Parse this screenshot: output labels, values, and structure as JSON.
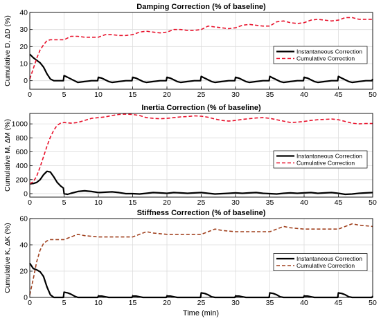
{
  "colors": {
    "instantaneous": "#000000",
    "cumulative_red": "#e8102a",
    "cumulative_brown": "#a0401e",
    "grid": "#dcdcdc",
    "axis": "#000000"
  },
  "xlabel": "Time (min)",
  "chart_data": [
    {
      "type": "line",
      "title": "Damping Correction (% of baseline)",
      "ylabel": "Cumulative D,  ΔD (%)",
      "xlim": [
        0,
        50
      ],
      "ylim": [
        -5,
        40
      ],
      "xticks": [
        0,
        5,
        10,
        15,
        20,
        25,
        30,
        35,
        40,
        45,
        50
      ],
      "yticks": [
        0,
        10,
        20,
        30,
        40
      ],
      "grid": true,
      "legend": "right",
      "series": [
        {
          "name": "Instantaneous Correction",
          "style": "solid",
          "color": "#000000",
          "x": [
            0,
            0.5,
            1,
            1.5,
            2,
            2.5,
            3,
            3.5,
            4,
            4.9,
            5,
            5.5,
            6,
            6.5,
            7,
            8,
            9,
            9.9,
            10,
            10.5,
            11,
            11.5,
            12,
            13,
            14,
            14.9,
            15,
            15.5,
            16,
            16.5,
            17,
            18,
            19,
            19.9,
            20,
            20.5,
            21,
            21.5,
            22,
            23,
            24,
            24.9,
            25,
            25.5,
            26,
            26.5,
            27,
            28,
            29,
            29.9,
            30,
            30.5,
            31,
            31.5,
            32,
            33,
            34,
            34.9,
            35,
            35.5,
            36,
            36.5,
            37,
            38,
            39,
            39.9,
            40,
            40.5,
            41,
            41.5,
            42,
            43,
            44,
            44.9,
            45,
            45.5,
            46,
            46.5,
            47,
            48,
            49,
            49.9,
            50
          ],
          "y": [
            15.5,
            13.5,
            12,
            10.5,
            8,
            4,
            1,
            0,
            0,
            0,
            3,
            2,
            1,
            0,
            -1,
            -0.5,
            0,
            0,
            2,
            1.5,
            0.5,
            -0.5,
            -1,
            -0.5,
            0,
            0,
            2,
            1.5,
            0.5,
            -0.5,
            -1,
            -0.5,
            0,
            0,
            2,
            1.5,
            0.5,
            -0.5,
            -1,
            -0.5,
            0,
            0,
            2.5,
            1.5,
            0.5,
            -0.5,
            -1,
            -0.5,
            0,
            0,
            2,
            1.5,
            0.5,
            -0.5,
            -1,
            -0.5,
            0,
            0,
            2.5,
            1.5,
            0.5,
            -0.5,
            -1,
            -0.5,
            0,
            0,
            2,
            1.5,
            0.5,
            -0.5,
            -1,
            -0.5,
            0,
            0,
            2.5,
            1.5,
            0.5,
            -0.5,
            -1,
            -0.5,
            0,
            0,
            1
          ]
        },
        {
          "name": "Cumulative Correction",
          "style": "dashed",
          "color": "#e8102a",
          "x": [
            0,
            0.5,
            1,
            1.5,
            2,
            2.5,
            3,
            4,
            5,
            6,
            7,
            8,
            9,
            10,
            11,
            12,
            13,
            14,
            15,
            16,
            17,
            18,
            19,
            20,
            21,
            22,
            23,
            24,
            25,
            26,
            27,
            28,
            29,
            30,
            31,
            32,
            33,
            34,
            35,
            36,
            37,
            38,
            39,
            40,
            41,
            42,
            43,
            44,
            45,
            46,
            47,
            48,
            49,
            50
          ],
          "y": [
            1,
            7,
            13,
            18,
            21,
            23.5,
            24,
            24,
            24,
            26,
            26,
            25.5,
            25.5,
            25.5,
            27,
            27,
            26.5,
            26.5,
            27,
            28.5,
            29,
            28.5,
            28,
            28.5,
            30,
            30,
            29.5,
            29.5,
            30,
            32,
            31.5,
            31,
            30.5,
            31,
            32.5,
            33,
            32.5,
            32,
            32,
            34.5,
            35,
            34,
            33.5,
            34,
            35.5,
            36,
            35.5,
            35,
            35.5,
            37,
            37,
            36,
            36,
            36
          ]
        }
      ]
    },
    {
      "type": "line",
      "title": "Inertia Correction (% of baseline)",
      "ylabel": "Cumulative M,  ΔM (%)",
      "xlim": [
        0,
        50
      ],
      "ylim": [
        -50,
        1150
      ],
      "xticks": [
        0,
        5,
        10,
        15,
        20,
        25,
        30,
        35,
        40,
        45,
        50
      ],
      "yticks": [
        0,
        200,
        400,
        600,
        800,
        1000
      ],
      "grid": true,
      "legend": "right",
      "series": [
        {
          "name": "Instantaneous Correction",
          "style": "solid",
          "color": "#000000",
          "x": [
            0,
            0.5,
            1,
            1.5,
            2,
            2.5,
            3,
            3.5,
            4,
            4.5,
            4.9,
            5,
            5.5,
            6,
            7,
            8,
            9,
            10,
            11,
            12,
            13,
            14,
            15,
            16,
            17,
            18,
            19,
            20,
            21,
            22,
            23,
            24,
            25,
            26,
            27,
            28,
            29,
            30,
            31,
            32,
            33,
            34,
            35,
            36,
            37,
            38,
            39,
            40,
            41,
            42,
            43,
            44,
            45,
            46,
            47,
            48,
            49,
            50
          ],
          "y": [
            140,
            145,
            160,
            200,
            270,
            320,
            310,
            240,
            160,
            110,
            80,
            0,
            -10,
            5,
            30,
            40,
            30,
            15,
            20,
            25,
            15,
            0,
            0,
            -5,
            5,
            15,
            10,
            5,
            15,
            10,
            5,
            10,
            15,
            5,
            -5,
            0,
            5,
            10,
            5,
            10,
            15,
            5,
            0,
            -5,
            5,
            10,
            5,
            10,
            15,
            5,
            10,
            15,
            5,
            -10,
            -5,
            5,
            10,
            15
          ]
        },
        {
          "name": "Cumulative Correction",
          "style": "dashed",
          "color": "#e8102a",
          "x": [
            0,
            0.5,
            1,
            1.5,
            2,
            2.5,
            3,
            3.5,
            4,
            4.5,
            5,
            6,
            7,
            8,
            9,
            10,
            11,
            12,
            13,
            14,
            15,
            16,
            17,
            18,
            19,
            20,
            21,
            22,
            23,
            24,
            25,
            26,
            27,
            28,
            29,
            30,
            31,
            32,
            33,
            34,
            35,
            36,
            37,
            38,
            39,
            40,
            41,
            42,
            43,
            44,
            45,
            46,
            47,
            48,
            49,
            50
          ],
          "y": [
            140,
            170,
            250,
            380,
            530,
            680,
            810,
            910,
            980,
            1010,
            1020,
            1010,
            1020,
            1050,
            1080,
            1090,
            1100,
            1120,
            1135,
            1140,
            1135,
            1120,
            1090,
            1080,
            1075,
            1080,
            1090,
            1100,
            1105,
            1115,
            1110,
            1095,
            1070,
            1050,
            1040,
            1050,
            1065,
            1075,
            1085,
            1090,
            1080,
            1060,
            1040,
            1020,
            1025,
            1035,
            1050,
            1060,
            1065,
            1070,
            1060,
            1035,
            1010,
            1000,
            1005,
            1005
          ]
        }
      ]
    },
    {
      "type": "line",
      "title": "Stiffness Correction (% of baseline)",
      "ylabel": "Cumulative K,  ΔK (%)",
      "xlim": [
        0,
        50
      ],
      "ylim": [
        0,
        60
      ],
      "xticks": [
        0,
        5,
        10,
        15,
        20,
        25,
        30,
        35,
        40,
        45,
        50
      ],
      "yticks": [
        0,
        20,
        40,
        60
      ],
      "grid": true,
      "legend": "right",
      "series": [
        {
          "name": "Instantaneous Correction",
          "style": "solid",
          "color": "#000000",
          "x": [
            0,
            0.5,
            1,
            1.5,
            2,
            2.5,
            3,
            3.5,
            4,
            4.9,
            5,
            5.5,
            6,
            6.5,
            7,
            8,
            9,
            9.9,
            10,
            10.5,
            11,
            11.5,
            12,
            13,
            14,
            14.9,
            15,
            15.5,
            16,
            16.5,
            17,
            18,
            19,
            19.9,
            20,
            20.5,
            21,
            21.5,
            22,
            23,
            24,
            24.9,
            25,
            25.5,
            26,
            26.5,
            27,
            28,
            29,
            29.9,
            30,
            30.5,
            31,
            31.5,
            32,
            33,
            34,
            34.9,
            35,
            35.5,
            36,
            36.5,
            37,
            38,
            39,
            39.9,
            40,
            40.5,
            41,
            41.5,
            42,
            43,
            44,
            44.9,
            45,
            45.5,
            46,
            46.5,
            47,
            48,
            49,
            49.9,
            50
          ],
          "y": [
            26,
            22,
            21,
            19.5,
            16,
            8,
            2,
            0,
            0,
            0,
            4,
            3.5,
            2.5,
            1,
            0,
            0,
            0,
            0,
            1,
            1,
            0.5,
            0,
            0,
            0,
            0,
            0,
            1,
            1,
            0.5,
            0,
            0,
            0,
            0,
            0,
            1,
            1,
            0.5,
            0,
            0,
            0,
            0,
            0,
            3.5,
            3,
            2,
            0.5,
            0,
            0,
            0,
            0,
            1,
            1,
            0.5,
            0,
            0,
            0,
            0,
            0,
            3.5,
            3,
            2,
            0.5,
            0,
            0,
            0,
            0,
            1,
            1,
            0.5,
            0,
            0,
            0,
            0,
            0,
            3.5,
            3,
            2,
            0.5,
            0,
            0,
            0,
            0,
            1
          ]
        },
        {
          "name": "Cumulative Correction",
          "style": "dashed",
          "color": "#a0401e",
          "x": [
            0,
            0.5,
            1,
            1.5,
            2,
            2.5,
            3,
            4,
            5,
            6,
            7,
            8,
            9,
            10,
            11,
            12,
            13,
            14,
            15,
            16,
            17,
            18,
            19,
            20,
            21,
            22,
            23,
            24,
            25,
            26,
            27,
            28,
            29,
            30,
            31,
            32,
            33,
            34,
            35,
            36,
            37,
            38,
            39,
            40,
            41,
            42,
            43,
            44,
            45,
            46,
            47,
            48,
            49,
            50
          ],
          "y": [
            2,
            14,
            27,
            36,
            41,
            43,
            44,
            44,
            44,
            46,
            48,
            47,
            46.5,
            46,
            46,
            46,
            46,
            46,
            46,
            48,
            50,
            49,
            48.5,
            48,
            48,
            48,
            48,
            48,
            48,
            50,
            52,
            51,
            50.5,
            50,
            50,
            50,
            50,
            50,
            50,
            52,
            54,
            53,
            52.5,
            52,
            52,
            52,
            52,
            52,
            52,
            54,
            56,
            55,
            54.5,
            54
          ]
        }
      ]
    }
  ]
}
